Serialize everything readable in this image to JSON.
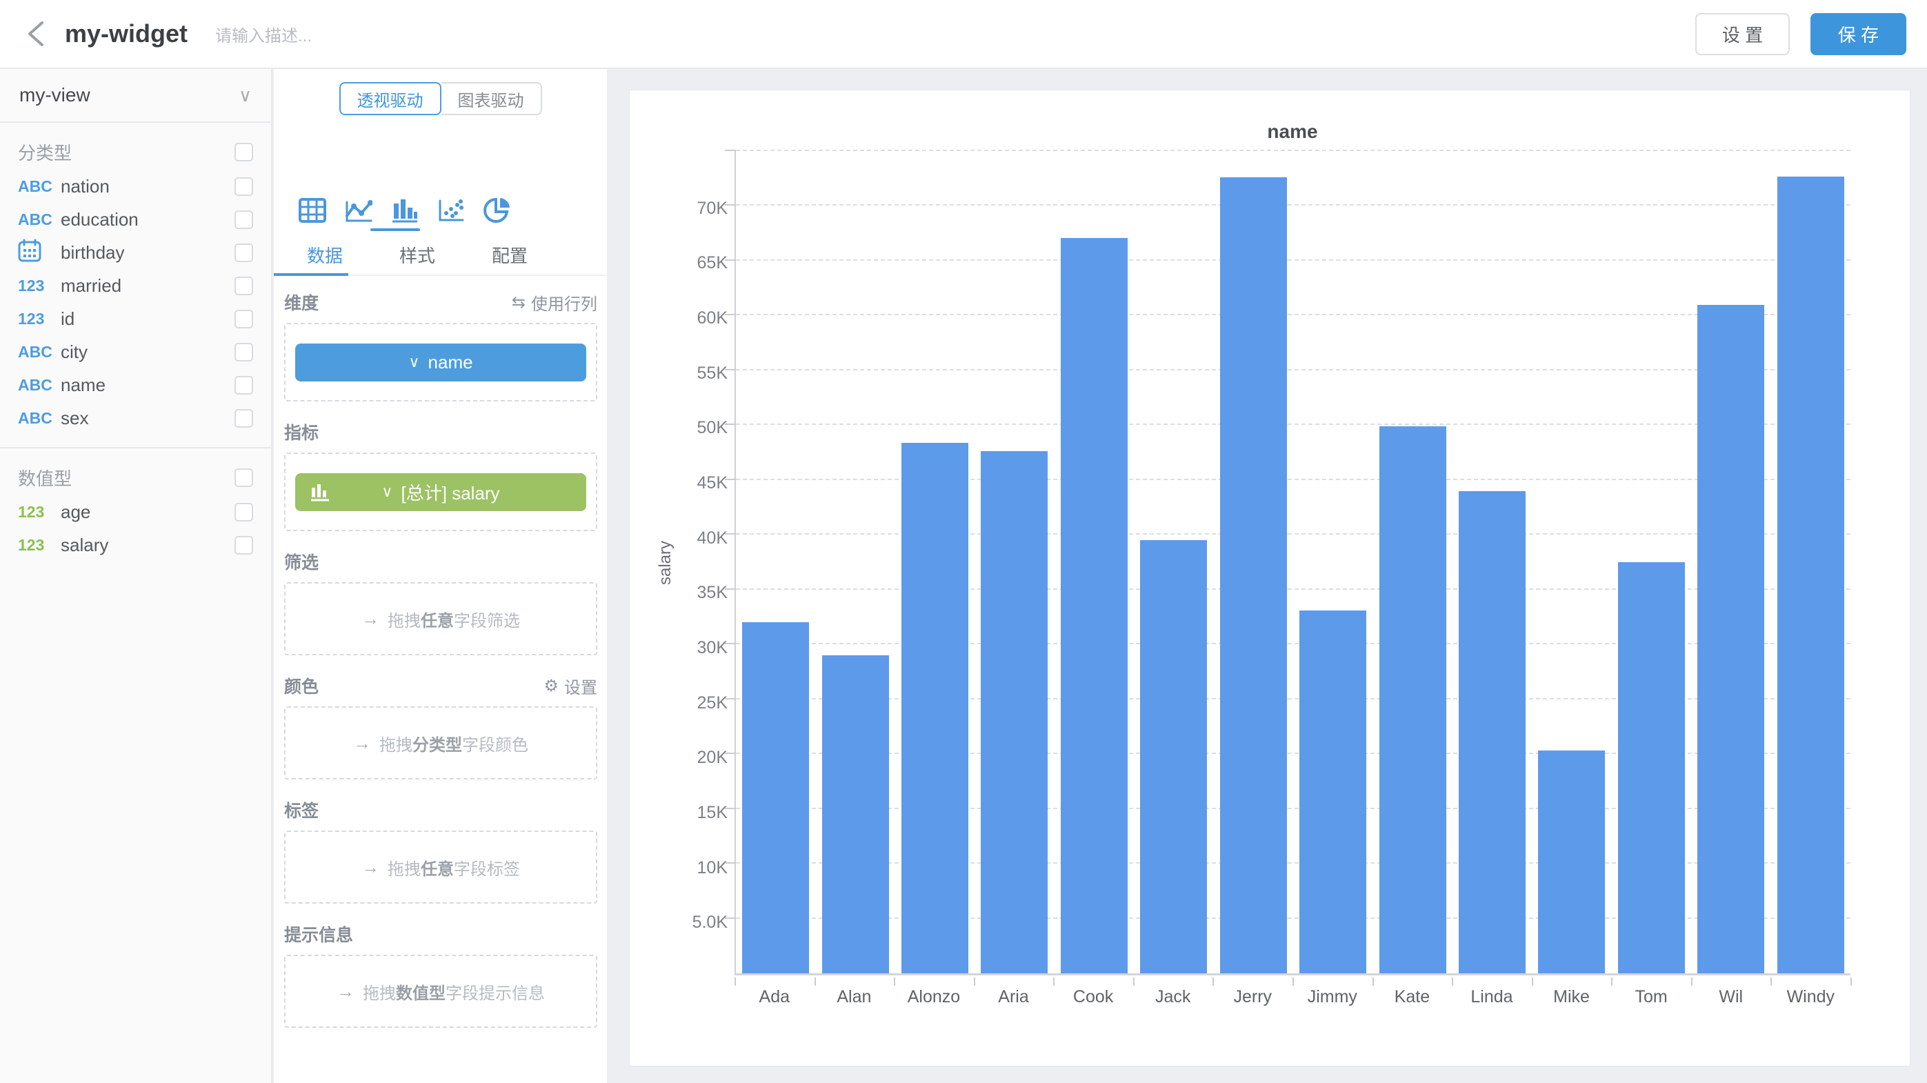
{
  "icons": {
    "abc": "ABC",
    "num": "123",
    "chevron_down": "∨",
    "swap": "⇆",
    "gear": "⚙",
    "arrow": "→"
  },
  "colors": {
    "accent_blue": "#3D96DB",
    "pill_blue": "#4D9DDE",
    "pill_green": "#9CC264",
    "bar_blue": "#5E9AEA",
    "numeric_green": "#8CBF4F"
  },
  "header": {
    "title": "my-widget",
    "description_placeholder": "请输入描述...",
    "settings_button": "设 置",
    "save_button": "保 存"
  },
  "sidebar": {
    "view_name": "my-view",
    "sections": [
      {
        "label": "分类型",
        "fields": [
          {
            "icon": "ABC",
            "label": "nation"
          },
          {
            "icon": "ABC",
            "label": "education"
          },
          {
            "icon": "calendar",
            "label": "birthday"
          },
          {
            "icon": "123",
            "label": "married"
          },
          {
            "icon": "123",
            "label": "id"
          },
          {
            "icon": "ABC",
            "label": "city"
          },
          {
            "icon": "ABC",
            "label": "name"
          },
          {
            "icon": "ABC",
            "label": "sex"
          }
        ]
      },
      {
        "label": "数值型",
        "fields": [
          {
            "icon": "123",
            "label": "age"
          },
          {
            "icon": "123",
            "label": "salary"
          }
        ]
      }
    ]
  },
  "panel": {
    "mode_tabs": [
      {
        "label": "透视驱动"
      },
      {
        "label": "图表驱动"
      }
    ],
    "chart_types": [
      "table",
      "line",
      "bar",
      "scatter",
      "pie"
    ],
    "active_chart_type": "bar",
    "data_tabs": [
      {
        "label": "数据"
      },
      {
        "label": "样式"
      },
      {
        "label": "配置"
      }
    ],
    "dimension_label": "维度",
    "use_rows_cols": "使用行列",
    "dimension_pill": "name",
    "measure_label": "指标",
    "measure_pill": "[总计] salary",
    "filter_label": "筛选",
    "filter_hint": {
      "pre": "拖拽",
      "bold": "任意",
      "suf": "字段筛选"
    },
    "color_label": "颜色",
    "color_settings": "设置",
    "color_hint": {
      "pre": "拖拽",
      "bold": "分类型",
      "suf": "字段颜色"
    },
    "label_label": "标签",
    "label_hint": {
      "pre": "拖拽",
      "bold": "任意",
      "suf": "字段标签"
    },
    "tooltip_label": "提示信息",
    "tooltip_hint": {
      "pre": "拖拽",
      "bold": "数值型",
      "suf": "字段提示信息"
    }
  },
  "chart_data": {
    "type": "bar",
    "title": "name",
    "xlabel": "",
    "ylabel": "salary",
    "categories": [
      "Ada",
      "Alan",
      "Alonzo",
      "Aria",
      "Cook",
      "Jack",
      "Jerry",
      "Jimmy",
      "Kate",
      "Linda",
      "Mike",
      "Tom",
      "Wil",
      "Windy"
    ],
    "values": [
      32000,
      29000,
      48400,
      47600,
      67100,
      39500,
      72600,
      33100,
      49900,
      44000,
      20300,
      37500,
      61000,
      72700
    ],
    "ylim": [
      0,
      75000
    ],
    "ytick_interval": 5000,
    "ytick_labels": [
      "5.0K",
      "10K",
      "15K",
      "20K",
      "25K",
      "30K",
      "35K",
      "40K",
      "45K",
      "50K",
      "55K",
      "60K",
      "65K",
      "70K"
    ],
    "grid": "dashed-horizontal",
    "legend": "none",
    "bar_color": "#5E9AEA"
  }
}
